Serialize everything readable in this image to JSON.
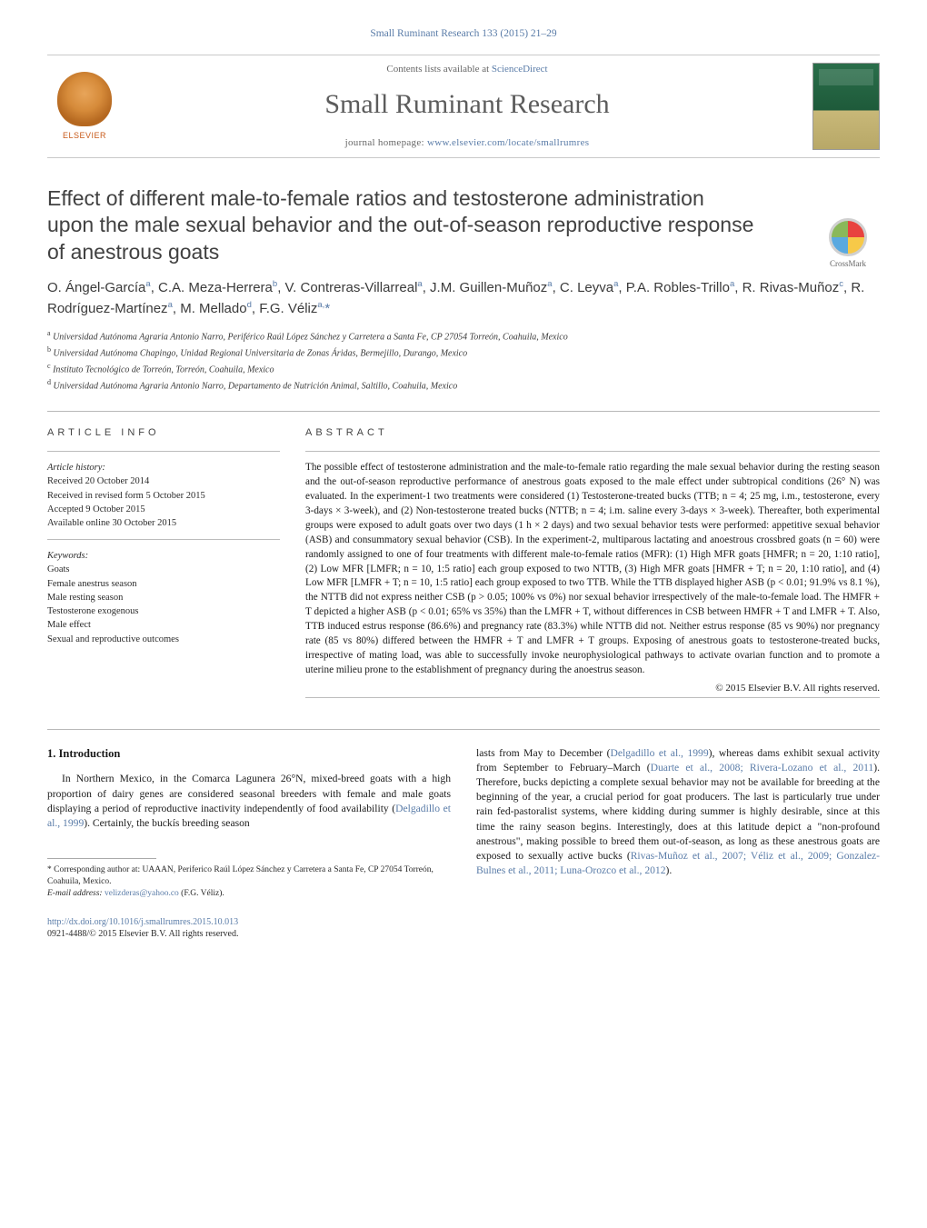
{
  "citation": "Small Ruminant Research 133 (2015) 21–29",
  "header": {
    "contents_prefix": "Contents lists available at ",
    "contents_link": "ScienceDirect",
    "journal_name": "Small Ruminant Research",
    "homepage_prefix": "journal homepage: ",
    "homepage_url": "www.elsevier.com/locate/smallrumres",
    "publisher_logo_text": "ELSEVIER",
    "crossmark_label": "CrossMark"
  },
  "colors": {
    "link": "#5a7ca8",
    "heading_gray": "#414141",
    "rule": "#b8b8b8"
  },
  "title": "Effect of different male-to-female ratios and testosterone administration upon the male sexual behavior and the out-of-season reproductive response of anestrous goats",
  "authors_html": "O. Ángel-García<sup>a</sup>, C.A. Meza-Herrera<sup>b</sup>, V. Contreras-Villarreal<sup>a</sup>, J.M. Guillen-Muñoz<sup>a</sup>, C. Leyva<sup>a</sup>, P.A. Robles-Trillo<sup>a</sup>, R. Rivas-Muñoz<sup>c</sup>, R. Rodríguez-Martínez<sup>a</sup>, M. Mellado<sup>d</sup>, F.G. Véliz<sup>a,</sup><span class='corr'>*</span>",
  "affiliations": [
    {
      "key": "a",
      "text": "Universidad Autónoma Agraria Antonio Narro, Periférico Raúl López Sánchez y Carretera a Santa Fe, CP 27054 Torreón, Coahuila, Mexico"
    },
    {
      "key": "b",
      "text": "Universidad Autónoma Chapingo, Unidad Regional Universitaria de Zonas Áridas, Bermejillo, Durango, Mexico"
    },
    {
      "key": "c",
      "text": "Instituto Tecnológico de Torreón, Torreón, Coahuila, Mexico"
    },
    {
      "key": "d",
      "text": "Universidad Autónoma Agraria Antonio Narro, Departamento de Nutrición Animal, Saltillo, Coahuila, Mexico"
    }
  ],
  "article_info": {
    "section_head": "ARTICLE INFO",
    "history_head": "Article history:",
    "received": "Received 20 October 2014",
    "revised": "Received in revised form 5 October 2015",
    "accepted": "Accepted 9 October 2015",
    "online": "Available online 30 October 2015",
    "keywords_head": "Keywords:",
    "keywords": [
      "Goats",
      "Female anestrus season",
      "Male resting season",
      "Testosterone exogenous",
      "Male effect",
      "Sexual and reproductive outcomes"
    ]
  },
  "abstract": {
    "head": "ABSTRACT",
    "text": "The possible effect of testosterone administration and the male-to-female ratio regarding the male sexual behavior during the resting season and the out-of-season reproductive performance of anestrous goats exposed to the male effect under subtropical conditions (26° N) was evaluated. In the experiment-1 two treatments were considered (1) Testosterone-treated bucks (TTB; n = 4; 25 mg, i.m., testosterone, every 3-days × 3-week), and (2) Non-testosterone treated bucks (NTTB; n = 4; i.m. saline every 3-days × 3-week). Thereafter, both experimental groups were exposed to adult goats over two days (1 h × 2 days) and two sexual behavior tests were performed: appetitive sexual behavior (ASB) and consummatory sexual behavior (CSB). In the experiment-2, multiparous lactating and anoestrous crossbred goats (n = 60) were randomly assigned to one of four treatments with different male-to-female ratios (MFR): (1) High MFR goats [HMFR; n = 20, 1:10 ratio], (2) Low MFR [LMFR; n = 10, 1:5 ratio] each group exposed to two NTTB, (3) High MFR goats [HMFR + T; n = 20, 1:10 ratio], and (4) Low MFR [LMFR + T; n = 10, 1:5 ratio] each group exposed to two TTB. While the TTB displayed higher ASB (p < 0.01; 91.9% vs 8.1 %), the NTTB did not express neither CSB (p > 0.05; 100% vs 0%) nor sexual behavior irrespectively of the male-to-female load. The HMFR + T depicted a higher ASB (p < 0.01; 65% vs 35%) than the LMFR + T, without differences in CSB between HMFR + T and LMFR + T. Also, TTB induced estrus response (86.6%) and pregnancy rate (83.3%) while NTTB did not. Neither estrus response (85 vs 90%) nor pregnancy rate (85 vs 80%) differed between the HMFR + T and LMFR + T groups. Exposing of anestrous goats to testosterone-treated bucks, irrespective of mating load, was able to successfully invoke neurophysiological pathways to activate ovarian function and to promote a uterine milieu prone to the establishment of pregnancy during the anoestrus season.",
    "copyright": "© 2015 Elsevier B.V. All rights reserved."
  },
  "body": {
    "intro_head": "1.  Introduction",
    "left_para": "In Northern Mexico, in the Comarca Lagunera 26°N, mixed-breed goats with a high proportion of dairy genes are considered seasonal breeders with female and male goats displaying a period of reproductive inactivity independently of food availability (",
    "left_cite1": "Delgadillo et al., 1999",
    "left_para_tail": "). Certainly, the buckís breeding season",
    "right_para_1": "lasts from May to December (",
    "right_cite1": "Delgadillo et al., 1999",
    "right_para_2": "), whereas dams exhibit sexual activity from September to February–March (",
    "right_cite2": "Duarte et al., 2008; Rivera-Lozano et al., 2011",
    "right_para_3": "). Therefore, bucks depicting a complete sexual behavior may not be available for breeding at the beginning of the year, a crucial period for goat producers. The last is particularly true under rain fed-pastoralist systems, where kidding during summer is highly desirable, since at this time the rainy season begins. Interestingly, does at this latitude depict a \"non-profound anestrous\", making possible to breed them out-of-season, as long as these anestrous goats are exposed to sexually active bucks (",
    "right_cite3": "Rivas-Muñoz et al., 2007; Véliz et al., 2009; Gonzalez-Bulnes et al., 2011; Luna-Orozco et al., 2012",
    "right_para_4": ")."
  },
  "footnote": {
    "corr_label": "* Corresponding author at: UAAAN, Periferico Raúl López Sánchez y Carretera a Santa Fe, CP 27054 Torreón, Coahuila, Mexico.",
    "email_label": "E-mail address: ",
    "email": "velizderas@yahoo.co",
    "email_author": " (F.G. Véliz)."
  },
  "doi": {
    "url": "http://dx.doi.org/10.1016/j.smallrumres.2015.10.013",
    "issn_line": "0921-4488/© 2015 Elsevier B.V. All rights reserved."
  }
}
